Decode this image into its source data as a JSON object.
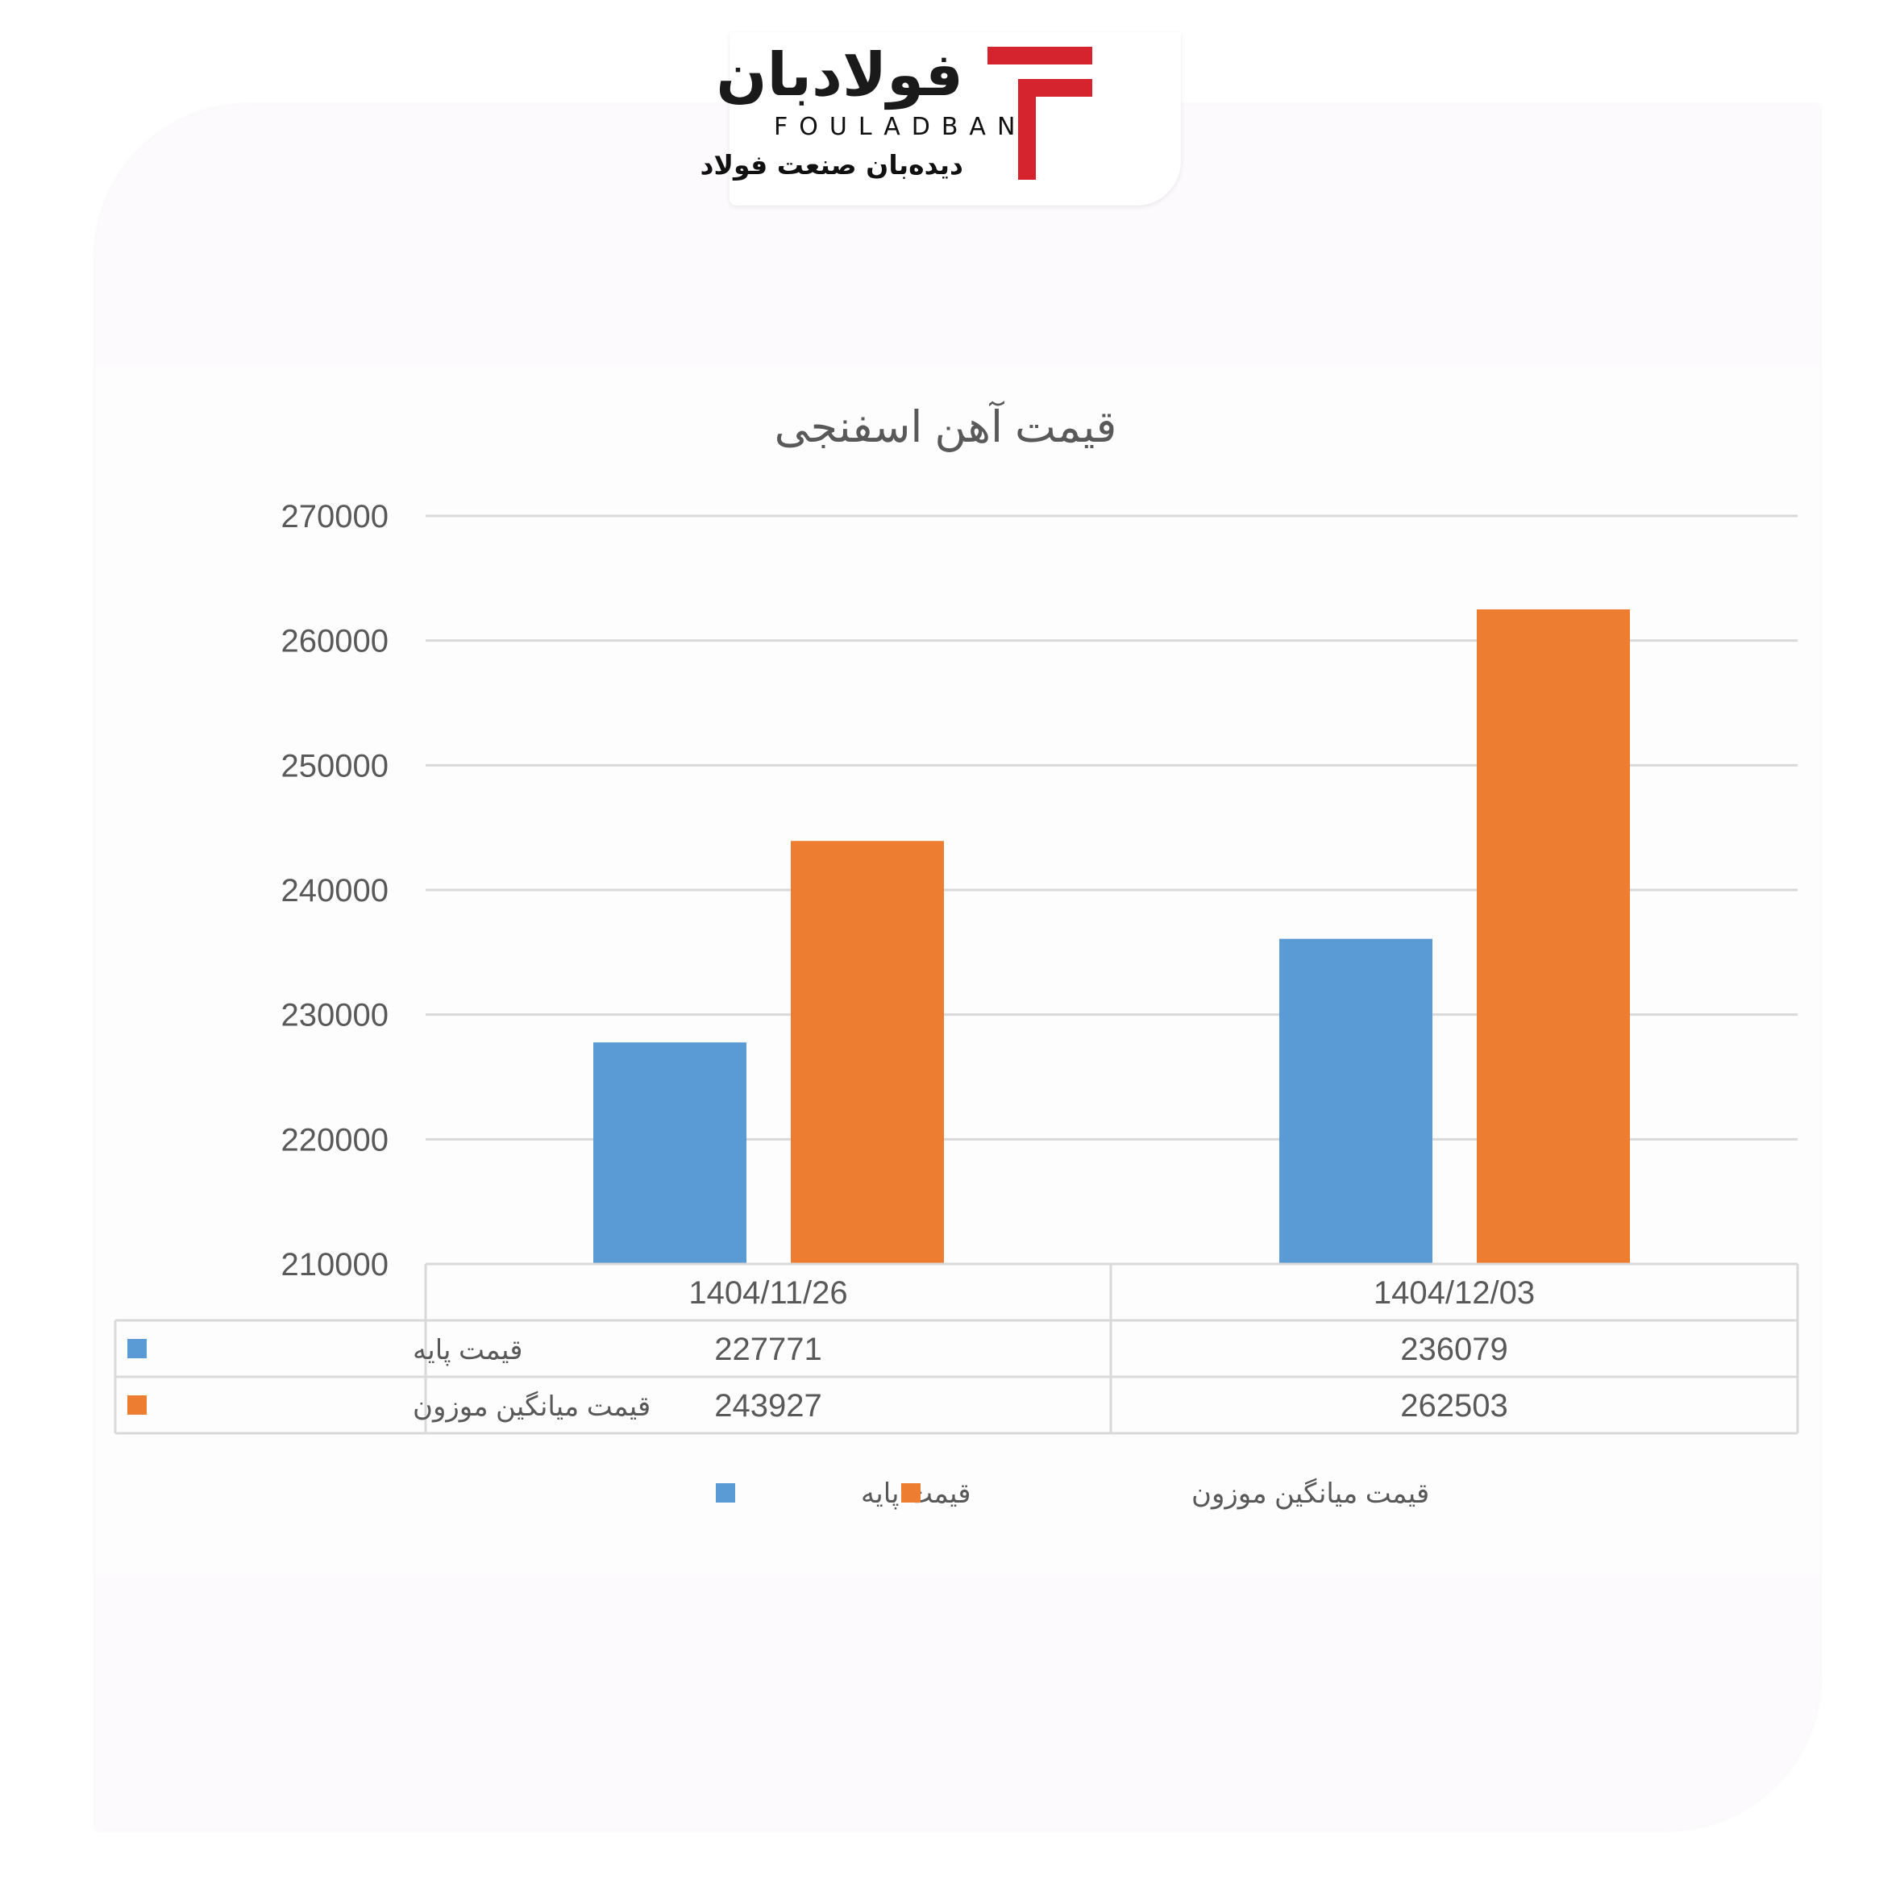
{
  "brand": {
    "name_fa": "فولادبان",
    "name_en": "FOULADBAN",
    "tagline": "دیده‌بان صنعت فولاد",
    "accent": "#d6242f"
  },
  "chart_data": {
    "type": "bar",
    "title": "قیمت آهن اسفنجی",
    "categories": [
      "1404/11/26",
      "1404/12/03"
    ],
    "series": [
      {
        "name": "قیمت پایه",
        "values": [
          227771,
          236079
        ],
        "color": "#5b9bd5"
      },
      {
        "name": "قیمت میانگین موزون",
        "values": [
          243927,
          262503
        ],
        "color": "#ed7d31"
      }
    ],
    "ylim": [
      210000,
      270000
    ],
    "yticks": [
      270000,
      260000,
      250000,
      240000,
      230000,
      220000,
      210000
    ],
    "grid": true,
    "legend": "bottom",
    "data_table": true
  }
}
